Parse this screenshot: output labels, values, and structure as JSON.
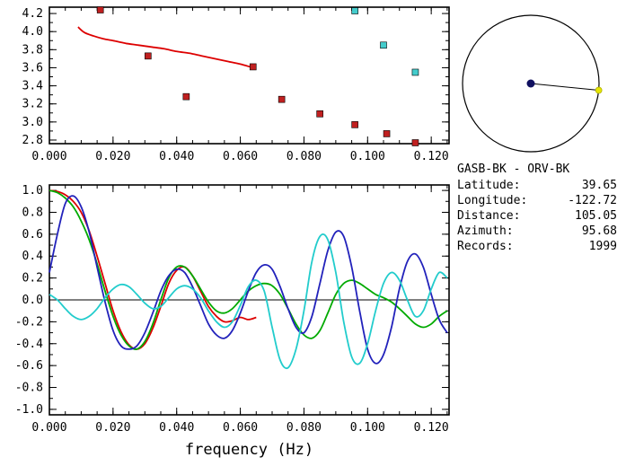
{
  "colors": {
    "red": "#dd0000",
    "green": "#00aa00",
    "blue": "#2222bb",
    "cyan": "#22cccc",
    "marker_red": "#c02020",
    "marker_cyan": "#44cccc",
    "navy": "#101060",
    "yellow": "#e6e600",
    "axis": "#000000"
  },
  "station_info": {
    "pair": "GASB-BK - ORV-BK",
    "rows": [
      {
        "label": "Latitude:",
        "value": "39.65"
      },
      {
        "label": "Longitude:",
        "value": "-122.72"
      },
      {
        "label": "Distance:",
        "value": "105.05"
      },
      {
        "label": "Azimuth:",
        "value": "95.68"
      },
      {
        "label": "Records:",
        "value": "1999"
      }
    ]
  },
  "compass": {
    "azimuth_deg": 95.68
  },
  "chart_data": [
    {
      "name": "dispersion",
      "type": "scatter",
      "title": "",
      "xlabel": "",
      "ylabel": "",
      "xlim": [
        0,
        0.1256
      ],
      "ylim": [
        2.76,
        4.27
      ],
      "xticks": [
        0,
        0.02,
        0.04,
        0.06,
        0.08,
        0.1,
        0.12
      ],
      "xtick_labels": [
        "0.000",
        "0.020",
        "0.040",
        "0.060",
        "0.080",
        "0.100",
        "0.120"
      ],
      "xminor_step": 0.005,
      "yticks": [
        2.8,
        3.0,
        3.2,
        3.4,
        3.6,
        3.8,
        4.0,
        4.2
      ],
      "ytick_labels": [
        "2.8",
        "3.0",
        "3.2",
        "3.4",
        "3.6",
        "3.8",
        "4.0",
        "4.2"
      ],
      "yminor_step": 0.1,
      "zero_line": false,
      "line_series": [
        {
          "name": "group-velocity-curve",
          "color": "red",
          "points": [
            [
              0.009,
              4.05
            ],
            [
              0.011,
              3.99
            ],
            [
              0.014,
              3.95
            ],
            [
              0.017,
              3.92
            ],
            [
              0.02,
              3.9
            ],
            [
              0.024,
              3.87
            ],
            [
              0.028,
              3.85
            ],
            [
              0.032,
              3.83
            ],
            [
              0.036,
              3.81
            ],
            [
              0.04,
              3.78
            ],
            [
              0.044,
              3.76
            ],
            [
              0.048,
              3.73
            ],
            [
              0.052,
              3.7
            ],
            [
              0.056,
              3.67
            ],
            [
              0.06,
              3.64
            ],
            [
              0.064,
              3.6
            ]
          ]
        }
      ],
      "marker_series": [
        {
          "name": "red-dispersion-points",
          "color": "marker_red",
          "points": [
            [
              0.016,
              4.24
            ],
            [
              0.031,
              3.73
            ],
            [
              0.043,
              3.28
            ],
            [
              0.064,
              3.61
            ],
            [
              0.073,
              3.25
            ],
            [
              0.085,
              3.09
            ],
            [
              0.096,
              2.97
            ],
            [
              0.106,
              2.87
            ],
            [
              0.115,
              2.77
            ]
          ]
        },
        {
          "name": "cyan-dispersion-points",
          "color": "marker_cyan",
          "points": [
            [
              0.096,
              4.23
            ],
            [
              0.105,
              3.85
            ],
            [
              0.115,
              3.55
            ]
          ]
        }
      ]
    },
    {
      "name": "correlation",
      "type": "line",
      "title": "",
      "xlabel": "frequency (Hz)",
      "ylabel": "",
      "xlim": [
        0,
        0.1256
      ],
      "ylim": [
        -1.05,
        1.05
      ],
      "xticks": [
        0,
        0.02,
        0.04,
        0.06,
        0.08,
        0.1,
        0.12
      ],
      "xtick_labels": [
        "0.000",
        "0.020",
        "0.040",
        "0.060",
        "0.080",
        "0.100",
        "0.120"
      ],
      "xminor_step": 0.005,
      "yticks": [
        -1.0,
        -0.8,
        -0.6,
        -0.4,
        -0.2,
        0.0,
        0.2,
        0.4,
        0.6,
        0.8,
        1.0
      ],
      "ytick_labels": [
        "-1.0",
        "-0.8",
        "-0.6",
        "-0.4",
        "-0.2",
        "0.0",
        "0.2",
        "0.4",
        "0.6",
        "0.8",
        "1.0"
      ],
      "yminor_step": 0.1,
      "zero_line": true,
      "series": [
        {
          "name": "red-trace",
          "color": "red",
          "x_start": 0,
          "x_step": 0.0025,
          "y": [
            1.0,
            0.99,
            0.96,
            0.9,
            0.8,
            0.63,
            0.4,
            0.15,
            -0.1,
            -0.29,
            -0.41,
            -0.45,
            -0.4,
            -0.26,
            -0.06,
            0.15,
            0.27,
            0.3,
            0.22,
            0.08,
            -0.06,
            -0.15,
            -0.2,
            -0.19,
            -0.16,
            -0.18,
            -0.16
          ]
        },
        {
          "name": "green-trace",
          "color": "green",
          "x_start": 0,
          "x_step": 0.0025,
          "y": [
            1.0,
            0.98,
            0.93,
            0.85,
            0.72,
            0.55,
            0.33,
            0.08,
            -0.15,
            -0.32,
            -0.42,
            -0.45,
            -0.38,
            -0.22,
            0.0,
            0.2,
            0.3,
            0.3,
            0.22,
            0.1,
            -0.02,
            -0.1,
            -0.12,
            -0.08,
            0.0,
            0.08,
            0.13,
            0.15,
            0.13,
            0.05,
            -0.08,
            -0.22,
            -0.32,
            -0.35,
            -0.28,
            -0.12,
            0.05,
            0.15,
            0.18,
            0.15,
            0.1,
            0.05,
            0.02,
            -0.02,
            -0.08,
            -0.15,
            -0.22,
            -0.25,
            -0.22,
            -0.15,
            -0.1
          ]
        },
        {
          "name": "blue-trace",
          "color": "blue",
          "x_start": 0,
          "x_step": 0.0025,
          "y": [
            0.25,
            0.6,
            0.88,
            0.95,
            0.85,
            0.62,
            0.3,
            -0.02,
            -0.28,
            -0.42,
            -0.45,
            -0.42,
            -0.3,
            -0.12,
            0.08,
            0.22,
            0.28,
            0.25,
            0.12,
            -0.05,
            -0.22,
            -0.32,
            -0.35,
            -0.28,
            -0.12,
            0.08,
            0.25,
            0.32,
            0.28,
            0.12,
            -0.08,
            -0.25,
            -0.3,
            -0.15,
            0.15,
            0.45,
            0.62,
            0.58,
            0.3,
            -0.1,
            -0.45,
            -0.58,
            -0.5,
            -0.25,
            0.1,
            0.35,
            0.42,
            0.3,
            0.05,
            -0.18,
            -0.3
          ]
        },
        {
          "name": "cyan-trace",
          "color": "cyan",
          "x_start": 0,
          "x_step": 0.0025,
          "y": [
            0.05,
            0.0,
            -0.08,
            -0.15,
            -0.18,
            -0.15,
            -0.08,
            0.02,
            0.1,
            0.14,
            0.12,
            0.05,
            -0.03,
            -0.08,
            -0.06,
            0.02,
            0.1,
            0.13,
            0.1,
            0.02,
            -0.1,
            -0.2,
            -0.25,
            -0.2,
            -0.05,
            0.12,
            0.18,
            0.08,
            -0.25,
            -0.55,
            -0.62,
            -0.45,
            -0.1,
            0.35,
            0.58,
            0.55,
            0.25,
            -0.2,
            -0.52,
            -0.58,
            -0.4,
            -0.1,
            0.15,
            0.25,
            0.18,
            0.0,
            -0.15,
            -0.1,
            0.1,
            0.25,
            0.2
          ]
        }
      ]
    }
  ]
}
